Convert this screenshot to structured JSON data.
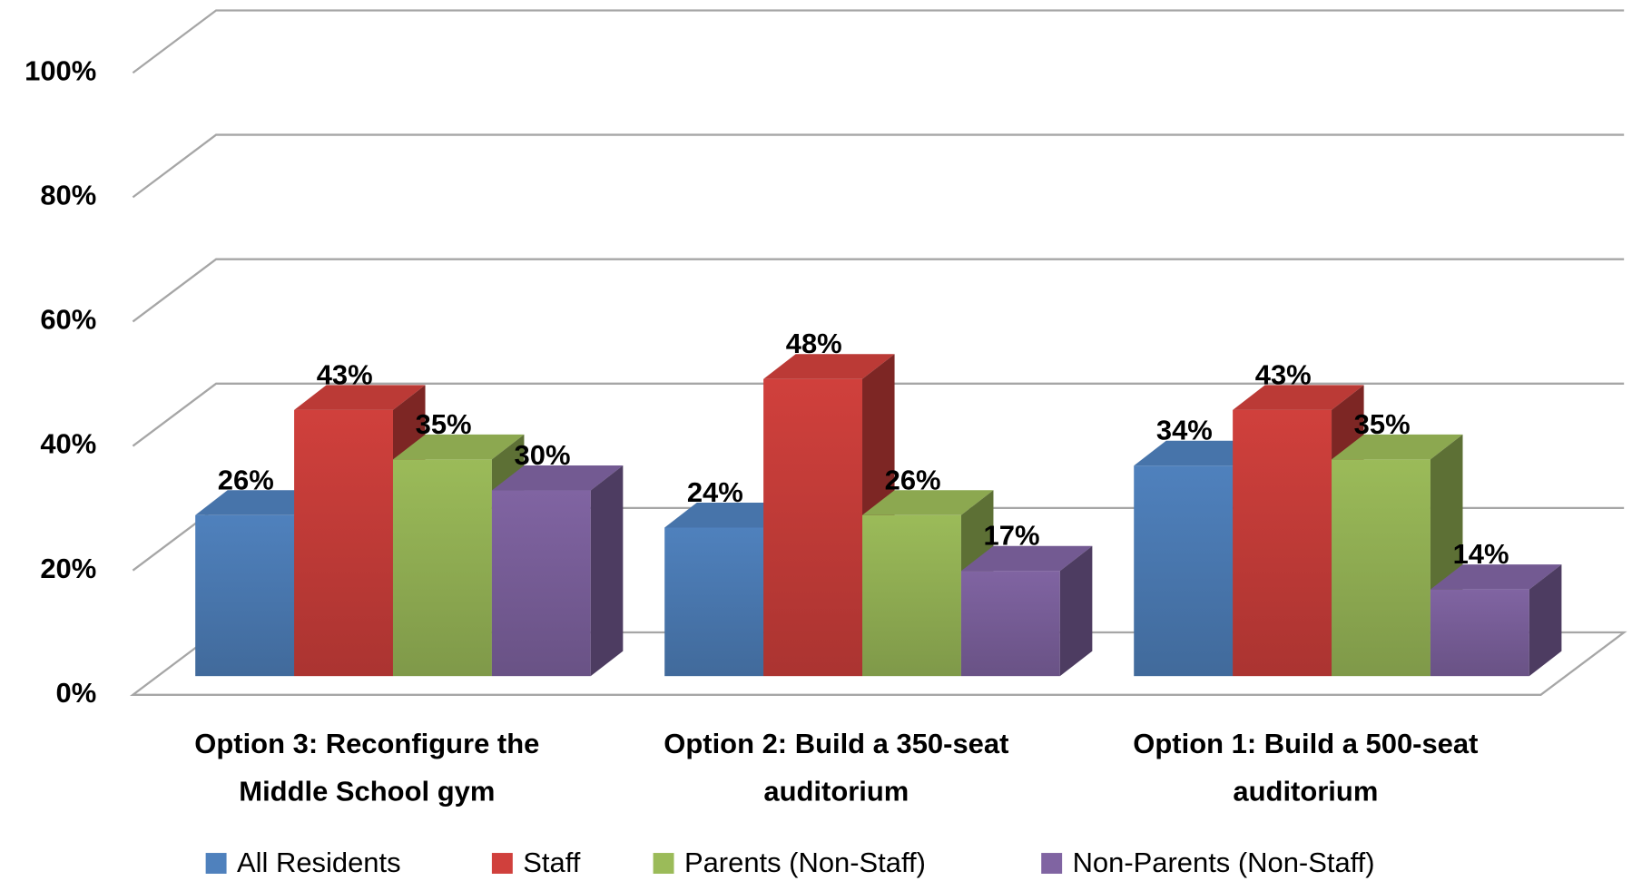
{
  "chart_data": {
    "type": "bar3d",
    "categories": [
      "Option 3: Reconfigure the Middle School gym",
      "Option 2: Build a 350-seat auditorium",
      "Option 1: Build a 500-seat auditorium"
    ],
    "series": [
      {
        "name": "All Residents",
        "color": "#4f81bd",
        "values": [
          26,
          24,
          34
        ],
        "value_labels": [
          "26%",
          "24%",
          "34%"
        ]
      },
      {
        "name": "Staff",
        "color": "#d0403c",
        "values": [
          43,
          48,
          43
        ],
        "value_labels": [
          "43%",
          "48%",
          "43%"
        ]
      },
      {
        "name": "Parents (Non-Staff)",
        "color": "#9bbb59",
        "values": [
          35,
          26,
          35
        ],
        "value_labels": [
          "35%",
          "26%",
          "35%"
        ]
      },
      {
        "name": "Non-Parents (Non-Staff)",
        "color": "#8064a2",
        "values": [
          30,
          17,
          14
        ],
        "value_labels": [
          "30%",
          "17%",
          "14%"
        ]
      }
    ],
    "ylim": [
      0,
      100
    ],
    "yticks": [
      {
        "value": 0,
        "label": "0%"
      },
      {
        "value": 20,
        "label": "20%"
      },
      {
        "value": 40,
        "label": "40%"
      },
      {
        "value": 60,
        "label": "60%"
      },
      {
        "value": 80,
        "label": "80%"
      },
      {
        "value": 100,
        "label": "100%"
      }
    ],
    "grid": true,
    "legend": "bottom"
  }
}
